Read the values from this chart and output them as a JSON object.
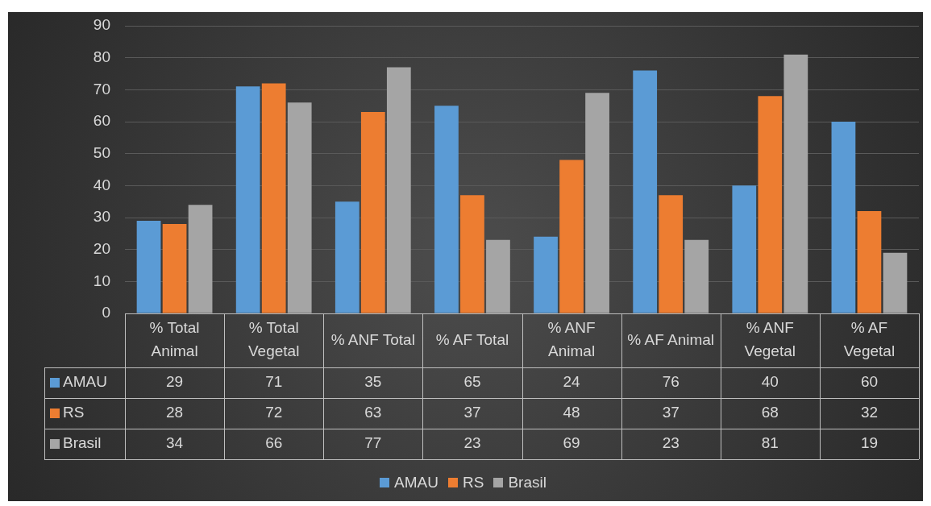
{
  "chart_data": {
    "type": "bar",
    "categories": [
      "% Total Animal",
      "% Total Vegetal",
      "% ANF Total",
      "% AF Total",
      "% ANF Animal",
      "% AF Animal",
      "% ANF Vegetal",
      "% AF Vegetal"
    ],
    "series": [
      {
        "name": "AMAU",
        "color": "#5b9bd5",
        "values": [
          29,
          71,
          35,
          65,
          24,
          76,
          40,
          60
        ]
      },
      {
        "name": "RS",
        "color": "#ed7d31",
        "values": [
          28,
          72,
          63,
          37,
          48,
          37,
          68,
          32
        ]
      },
      {
        "name": "Brasil",
        "color": "#a5a5a5",
        "values": [
          34,
          66,
          77,
          23,
          69,
          23,
          81,
          19
        ]
      }
    ],
    "ylim": [
      0,
      90
    ],
    "yticks": [
      0,
      10,
      20,
      30,
      40,
      50,
      60,
      70,
      80,
      90
    ],
    "grid": "y",
    "legend": "bottom",
    "data_labels": true
  }
}
